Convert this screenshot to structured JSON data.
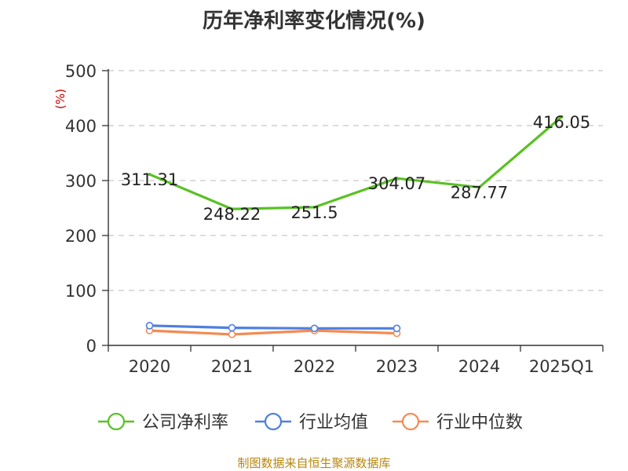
{
  "title": "历年净利率变化情况(%)",
  "footer": "制图数据来自恒生聚源数据库",
  "chart_data": {
    "type": "line",
    "title": "历年净利率变化情况(%)",
    "ylabel": "(%)",
    "xlabel": "",
    "categories": [
      "2020",
      "2021",
      "2022",
      "2023",
      "2024",
      "2025Q1"
    ],
    "ylim": [
      0,
      500
    ],
    "yticks": [
      0,
      100,
      200,
      300,
      400,
      500
    ],
    "grid": true,
    "legend_position": "bottom",
    "series": [
      {
        "name": "公司净利率",
        "color": "#5ac124",
        "values": [
          311.31,
          248.22,
          251.5,
          304.07,
          287.77,
          416.05
        ],
        "labels": [
          "311.31",
          "248.22",
          "251.5",
          "304.07",
          "287.77",
          "416.05"
        ]
      },
      {
        "name": "行业均值",
        "color": "#4e7fe0",
        "values": [
          36,
          32,
          31,
          31,
          null,
          null
        ]
      },
      {
        "name": "行业中位数",
        "color": "#f38b55",
        "values": [
          27,
          20,
          27,
          22,
          null,
          null
        ]
      }
    ]
  }
}
